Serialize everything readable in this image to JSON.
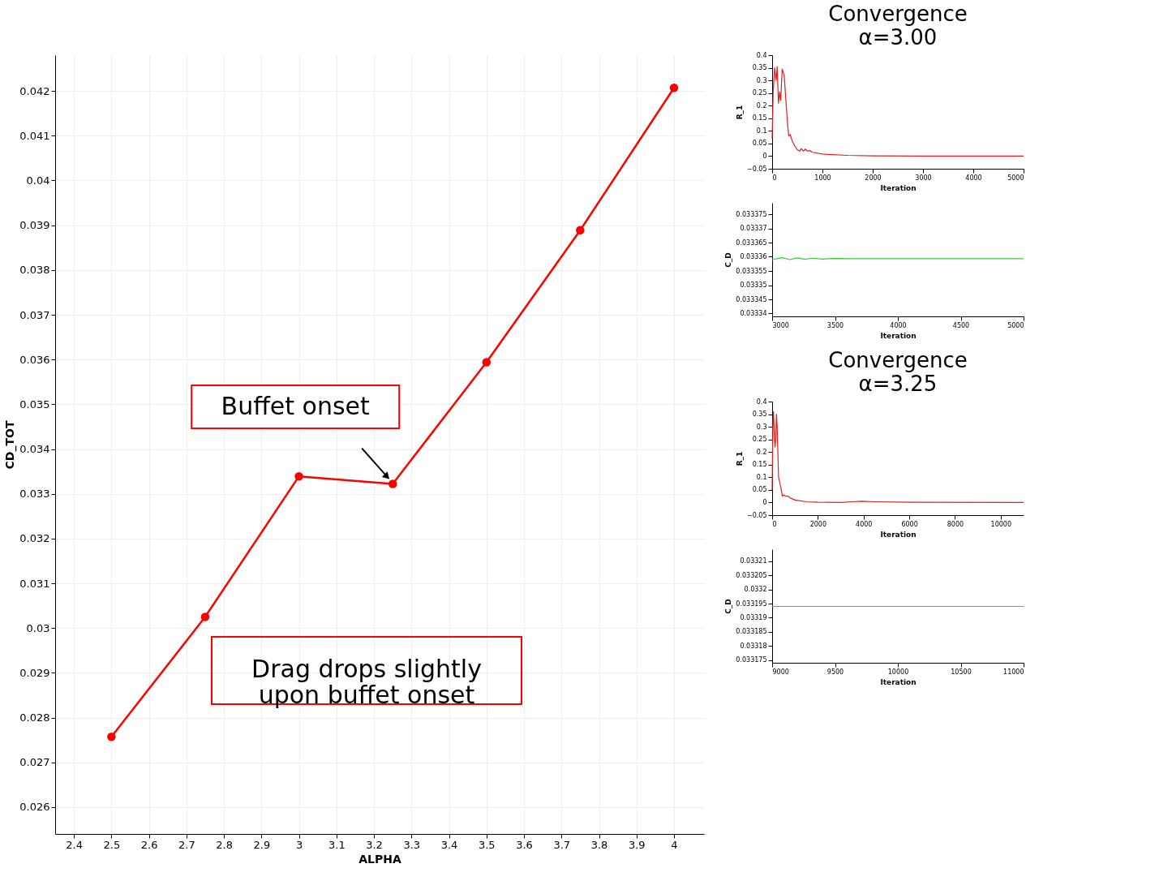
{
  "chart_data": [
    {
      "type": "line",
      "xlabel": "ALPHA",
      "ylabel": "CD_TOT",
      "x": [
        2.5,
        2.75,
        3.0,
        3.25,
        3.5,
        3.75,
        4.0
      ],
      "series": [
        {
          "color": "#ff0000",
          "values": [
            0.02757,
            0.03025,
            0.03339,
            0.03322,
            0.03594,
            0.03889,
            0.04207
          ]
        }
      ],
      "xlim": [
        2.35,
        4.08
      ],
      "xticks": [
        2.4,
        2.5,
        2.6,
        2.7,
        2.8,
        2.9,
        3,
        3.1,
        3.2,
        3.3,
        3.4,
        3.5,
        3.6,
        3.7,
        3.8,
        3.9,
        4
      ],
      "ylim": [
        0.0254,
        0.0428
      ],
      "yticks": [
        0.026,
        0.027,
        0.028,
        0.029,
        0.03,
        0.031,
        0.032,
        0.033,
        0.034,
        0.035,
        0.036,
        0.037,
        0.038,
        0.039,
        0.04,
        0.041,
        0.042
      ],
      "grid": true,
      "marker": "circle",
      "annotations": [
        {
          "text": "Buffet onset",
          "x": 3.25,
          "y": 0.03322
        },
        "Drag drops slightly\nupon buffet onset"
      ]
    },
    {
      "type": "line",
      "title": "Convergence",
      "subtitle": "α=3.00",
      "xlabel": "Iteration",
      "ylabel": "R_1",
      "x": [
        0,
        20,
        50,
        80,
        100,
        125,
        150,
        170,
        200,
        240,
        280,
        310,
        330,
        360,
        400,
        450,
        500,
        550,
        580,
        620,
        660,
        700,
        750,
        800,
        1000,
        1500,
        2000,
        3000,
        5000
      ],
      "series": [
        {
          "color": "#e02020",
          "values": [
            0.07,
            0.25,
            0.35,
            0.3,
            0.355,
            0.21,
            0.255,
            0.22,
            0.345,
            0.32,
            0.2,
            0.12,
            0.08,
            0.085,
            0.06,
            0.04,
            0.025,
            0.02,
            0.03,
            0.02,
            0.028,
            0.02,
            0.022,
            0.015,
            0.008,
            0.003,
            0.001,
            0,
            0
          ]
        }
      ],
      "xlim": [
        0,
        5000
      ],
      "xticks": [
        0,
        1000,
        2000,
        3000,
        4000,
        5000
      ],
      "ylim": [
        -0.05,
        0.4
      ],
      "yticks": [
        -0.05,
        0,
        0.05,
        0.1,
        0.15,
        0.2,
        0.25,
        0.3,
        0.35,
        0.4
      ]
    },
    {
      "type": "line",
      "xlabel": "Iteration",
      "ylabel": "C_D",
      "x": [
        3000,
        3080,
        3140,
        3200,
        3260,
        3320,
        3400,
        3500,
        3600,
        5000
      ],
      "series": [
        {
          "color": "#33cc33",
          "values": [
            0.033359,
            0.0333597,
            0.033359,
            0.0333596,
            0.0333591,
            0.0333595,
            0.0333592,
            0.0333594,
            0.0333593,
            0.0333593
          ]
        }
      ],
      "xlim": [
        3000,
        5000
      ],
      "xticks": [
        3000,
        3500,
        4000,
        4500,
        5000
      ],
      "ylim": [
        0.033339,
        0.033379
      ],
      "yticks": [
        0.03334,
        0.033345,
        0.03335,
        0.033355,
        0.03336,
        0.033365,
        0.03337,
        0.033375
      ]
    },
    {
      "type": "line",
      "title": "Convergence",
      "subtitle": "α=3.25",
      "xlabel": "Iteration",
      "ylabel": "R_1",
      "x": [
        0,
        30,
        60,
        100,
        130,
        160,
        190,
        220,
        280,
        320,
        400,
        450,
        500,
        600,
        700,
        800,
        1000,
        1500,
        2000,
        3000,
        3500,
        3900,
        4500,
        6000,
        11000
      ],
      "series": [
        {
          "color": "#e02020",
          "values": [
            0.05,
            0.3,
            0.36,
            0.25,
            0.22,
            0.26,
            0.35,
            0.3,
            0.1,
            0.085,
            0.05,
            0.025,
            0.03,
            0.025,
            0.025,
            0.018,
            0.01,
            0.003,
            0.001,
            0,
            0.003,
            0.005,
            0.003,
            0.001,
            0
          ]
        }
      ],
      "xlim": [
        0,
        11000
      ],
      "xticks": [
        0,
        2000,
        4000,
        6000,
        8000,
        10000
      ],
      "ylim": [
        -0.05,
        0.4
      ],
      "yticks": [
        -0.05,
        0,
        0.05,
        0.1,
        0.15,
        0.2,
        0.25,
        0.3,
        0.35,
        0.4
      ]
    },
    {
      "type": "line",
      "xlabel": "Iteration",
      "ylabel": "C_D",
      "x": [
        9000,
        11000
      ],
      "series": [
        {
          "color": "#33cc33",
          "values": [
            0.033194,
            0.033194
          ]
        }
      ],
      "xlim": [
        9000,
        11000
      ],
      "xticks": [
        9000,
        9500,
        10000,
        10500,
        11000
      ],
      "ylim": [
        0.0331741,
        0.0332142
      ],
      "yticks": [
        0.033175,
        0.03318,
        0.033185,
        0.03319,
        0.033195,
        0.0332,
        0.033205,
        0.03321
      ]
    }
  ]
}
